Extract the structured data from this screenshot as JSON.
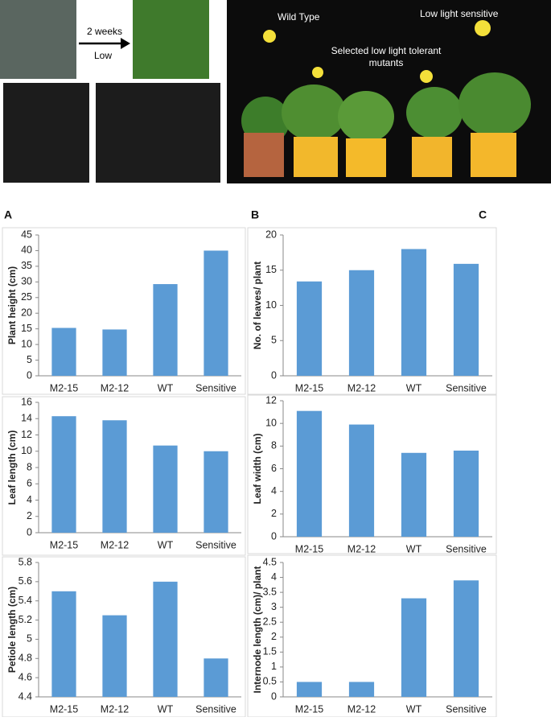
{
  "figure": {
    "arrow_top": "2 weeks",
    "arrow_bottom": "Low",
    "wild_type": "Wild Type",
    "sensitive": "Low light sensitive",
    "tolerant": "Selected low light tolerant mutants",
    "panels": [
      "A",
      "B",
      "C"
    ]
  },
  "chart_data": [
    {
      "type": "bar",
      "y_label": "Plant height (cm)",
      "categories": [
        "M2-15",
        "M2-12",
        "WT",
        "Sensitive"
      ],
      "values": [
        15.3,
        14.8,
        29.3,
        40
      ],
      "color": "#5b9bd5",
      "ylim": [
        0,
        45
      ],
      "yticks": [
        0,
        5,
        10,
        15,
        20,
        25,
        30,
        35,
        40,
        45
      ]
    },
    {
      "type": "bar",
      "y_label": "No. of leaves/ plant",
      "categories": [
        "M2-15",
        "M2-12",
        "WT",
        "Sensitive"
      ],
      "values": [
        13.4,
        15,
        18,
        15.9
      ],
      "color": "#5b9bd5",
      "ylim": [
        0,
        20
      ],
      "yticks": [
        0,
        5,
        10,
        15,
        20
      ]
    },
    {
      "type": "bar",
      "y_label": "Leaf length (cm)",
      "categories": [
        "M2-15",
        "M2-12",
        "WT",
        "Sensitive"
      ],
      "values": [
        14.3,
        13.8,
        10.7,
        10
      ],
      "color": "#5b9bd5",
      "ylim": [
        0,
        16
      ],
      "yticks": [
        0,
        2,
        4,
        6,
        8,
        10,
        12,
        14,
        16
      ]
    },
    {
      "type": "bar",
      "y_label": "Leaf width (cm)",
      "categories": [
        "M2-15",
        "M2-12",
        "WT",
        "Sensitive"
      ],
      "values": [
        11.1,
        9.9,
        7.4,
        7.6
      ],
      "color": "#5b9bd5",
      "ylim": [
        0,
        12
      ],
      "yticks": [
        0,
        2,
        4,
        6,
        8,
        10,
        12
      ]
    },
    {
      "type": "bar",
      "y_label": "Petiole length (cm)",
      "categories": [
        "M2-15",
        "M2-12",
        "WT",
        "Sensitive"
      ],
      "values": [
        5.5,
        5.25,
        5.6,
        4.8
      ],
      "color": "#5b9bd5",
      "ylim": [
        4.4,
        5.8
      ],
      "yticks": [
        4.4,
        4.6,
        4.8,
        5,
        5.2,
        5.4,
        5.6,
        5.8
      ]
    },
    {
      "type": "bar",
      "y_label": "Internode length (cm)/ plant",
      "categories": [
        "M2-15",
        "M2-12",
        "WT",
        "Sensitive"
      ],
      "values": [
        0.5,
        0.5,
        3.3,
        3.9
      ],
      "color": "#5b9bd5",
      "ylim": [
        0,
        4.5
      ],
      "yticks": [
        0,
        0.5,
        1,
        1.5,
        2,
        2.5,
        3,
        3.5,
        4,
        4.5
      ]
    }
  ]
}
